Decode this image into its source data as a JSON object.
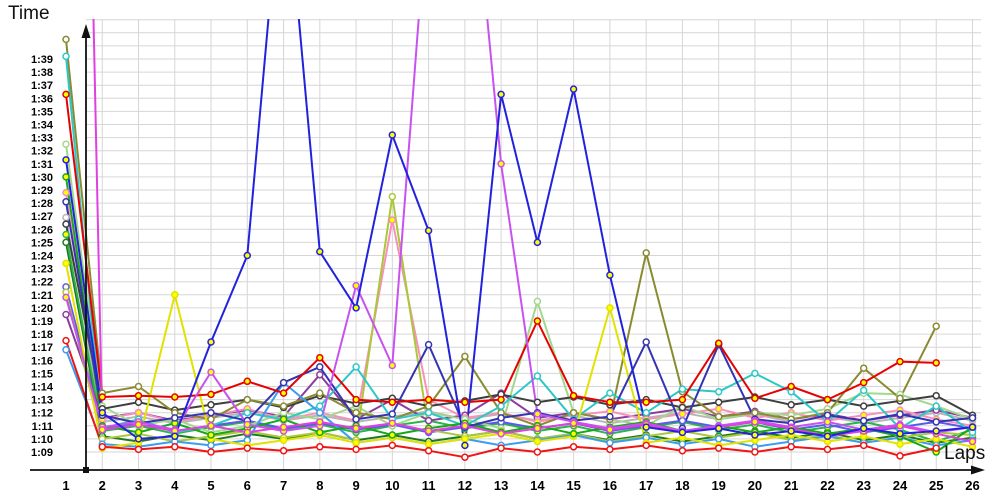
{
  "chart_data": {
    "type": "line",
    "title": "",
    "xlabel": "Laps",
    "ylabel": "Time",
    "grid": true,
    "legend_position": "none",
    "x_ticks": [
      1,
      2,
      3,
      4,
      5,
      6,
      7,
      8,
      9,
      10,
      11,
      12,
      13,
      14,
      15,
      16,
      17,
      18,
      19,
      20,
      21,
      22,
      23,
      24,
      25,
      26
    ],
    "y_tick_labels": [
      "1:09",
      "1:10",
      "1:11",
      "1:12",
      "1:13",
      "1:14",
      "1:15",
      "1:16",
      "1:17",
      "1:18",
      "1:19",
      "1:20",
      "1:21",
      "1:22",
      "1:23",
      "1:24",
      "1:25",
      "1:26",
      "1:27",
      "1:28",
      "1:29",
      "1:30",
      "1:31",
      "1:32",
      "1:33",
      "1:34",
      "1:35",
      "1:36",
      "1:37",
      "1:38",
      "1:39"
    ],
    "y_tick_seconds_start": 69,
    "ylim_seconds": [
      68,
      103
    ],
    "x_range": [
      1,
      26
    ],
    "note": "values are lap times in seconds; values above 102s run off the top of the plot (clipped)",
    "colors": {
      "grid": "#d6d6d6",
      "axis": "#111111",
      "marker_yellow": "#ffff00",
      "marker_white": "#ffffff"
    },
    "series": [
      {
        "name": "silver",
        "color": "#b6b6b6",
        "marker_fill": "white",
        "values": [
          86.9,
          71.3,
          71.7,
          71.2,
          71.6,
          72.0,
          71.4,
          71.8,
          71.3,
          71.7,
          72.1,
          71.5,
          71.9,
          71.4,
          71.8,
          71.2,
          71.6,
          72.0,
          71.5,
          71.9,
          71.3,
          71.7,
          71.2,
          71.6,
          72.0,
          71.4
        ]
      },
      {
        "name": "darkgreen",
        "color": "#1e7a1e",
        "marker_fill": "white",
        "values": [
          85.0,
          70.2,
          69.8,
          70.3,
          69.9,
          70.4,
          70.0,
          70.5,
          69.9,
          70.3,
          69.8,
          70.2,
          70.6,
          70.0,
          70.4,
          69.9,
          70.3,
          69.8,
          70.2,
          70.6,
          70.1,
          70.5,
          69.9,
          70.3,
          69.7,
          70.1
        ]
      },
      {
        "name": "green2",
        "color": "#2cb44c",
        "marker_fill": "yellow",
        "values": [
          85.6,
          70.6,
          71.0,
          70.4,
          70.9,
          71.3,
          70.7,
          71.1,
          70.5,
          71.0,
          71.4,
          70.8,
          71.2,
          70.6,
          71.0,
          70.4,
          70.9,
          71.3,
          70.7,
          71.1,
          70.5,
          70.9,
          71.3,
          70.7,
          69.8,
          70.7
        ]
      },
      {
        "name": "blue2",
        "color": "#5a5aec",
        "marker_fill": "white",
        "values": [
          81.6,
          70.8,
          71.2,
          70.6,
          71.0,
          71.4,
          70.8,
          71.2,
          70.7,
          71.1,
          70.5,
          70.9,
          71.3,
          70.8,
          71.2,
          70.6,
          71.0,
          71.4,
          70.9,
          71.3,
          70.7,
          71.1,
          70.5,
          70.9,
          71.3,
          70.8
        ]
      },
      {
        "name": "purple",
        "color": "#8c3c9c",
        "marker_fill": "white",
        "values": [
          79.5,
          71.6,
          72.0,
          71.4,
          71.8,
          72.2,
          71.7,
          74.9,
          71.5,
          73.0,
          71.4,
          71.8,
          73.5,
          71.6,
          72.0,
          71.5,
          71.9,
          72.3,
          71.7,
          72.1,
          71.5,
          71.9,
          71.4,
          71.8,
          72.2,
          71.6
        ]
      },
      {
        "name": "pink",
        "color": "#f890bc",
        "marker_fill": "yellow",
        "values": [
          88.8,
          71.5,
          72.0,
          71.3,
          71.8,
          72.3,
          71.5,
          72.0,
          71.4,
          86.7,
          73.0,
          71.6,
          72.0,
          71.3,
          71.8,
          72.1,
          71.5,
          71.9,
          72.3,
          71.6,
          72.0,
          71.4,
          71.8,
          72.2,
          71.5,
          71.0
        ]
      },
      {
        "name": "palegreen",
        "color": "#a2d88e",
        "marker_fill": "white",
        "values": [
          92.5,
          72.5,
          71.0,
          71.5,
          70.5,
          71.0,
          72.0,
          71.5,
          72.5,
          71.0,
          72.0,
          71.5,
          70.8,
          80.5,
          72.0,
          71.5,
          71.0,
          72.5,
          71.5,
          72.0,
          71.8,
          72.3,
          73.5,
          73.4,
          72.5,
          71.5
        ]
      },
      {
        "name": "yellowgreen",
        "color": "#aac838",
        "marker_fill": "white",
        "values": [
          81.2,
          70.0,
          70.4,
          69.8,
          70.2,
          70.6,
          70.1,
          70.5,
          69.9,
          88.5,
          70.7,
          70.2,
          70.6,
          70.0,
          70.4,
          69.8,
          70.2,
          70.6,
          70.1,
          70.5,
          69.9,
          70.3,
          69.7,
          70.1,
          70.5,
          70.3
        ]
      },
      {
        "name": "darkgray",
        "color": "#3e3e3e",
        "marker_fill": "white",
        "values": [
          86.4,
          72.3,
          72.8,
          72.2,
          72.6,
          73.0,
          72.4,
          73.3,
          72.7,
          73.1,
          72.5,
          72.9,
          73.4,
          72.8,
          73.2,
          72.6,
          73.0,
          72.4,
          72.8,
          73.2,
          72.6,
          73.0,
          72.5,
          72.9,
          73.3,
          71.8
        ]
      },
      {
        "name": "olive",
        "color": "#8a8a30",
        "marker_fill": "white",
        "values": [
          100.5,
          73.5,
          74.0,
          72.0,
          71.5,
          73.0,
          72.5,
          73.5,
          72.0,
          71.5,
          72.5,
          76.3,
          72.0,
          71.0,
          72.0,
          71.5,
          84.2,
          73.6,
          71.7,
          72.0,
          71.5,
          72.0,
          75.4,
          73.1,
          78.6
        ]
      },
      {
        "name": "cyan",
        "color": "#2cc8c8",
        "marker_fill": "white",
        "values": [
          99.2,
          70.8,
          71.5,
          70.5,
          71.0,
          72.0,
          71.5,
          72.5,
          75.5,
          71.5,
          72.0,
          71.0,
          72.5,
          74.8,
          71.5,
          73.5,
          72.0,
          73.8,
          73.6,
          75.0,
          73.6,
          71.3,
          73.7,
          70.8,
          72.5,
          70.5
        ]
      },
      {
        "name": "skyblue",
        "color": "#3c9cf0",
        "marker_fill": "white",
        "values": [
          76.8,
          69.6,
          69.4,
          69.8,
          69.5,
          69.9,
          74.3,
          72.0,
          69.7,
          70.1,
          69.6,
          70.0,
          69.5,
          69.9,
          70.3,
          69.7,
          70.1,
          69.6,
          70.0,
          69.4,
          69.8,
          70.2,
          69.7,
          70.1,
          69.5,
          69.9
        ]
      },
      {
        "name": "yellow",
        "color": "#e2e200",
        "marker_fill": "yellow",
        "values": [
          83.4,
          69.3,
          69.7,
          81.0,
          70.0,
          69.5,
          69.9,
          70.3,
          69.7,
          70.1,
          69.6,
          70.0,
          70.4,
          69.8,
          70.2,
          80.0,
          69.7,
          70.1,
          69.5,
          69.9,
          70.3,
          69.8,
          70.2,
          69.6,
          70.0,
          69.4
        ]
      },
      {
        "name": "green",
        "color": "#16a816",
        "marker_fill": "yellow",
        "values": [
          90.0,
          71.0,
          70.5,
          71.2,
          70.3,
          70.8,
          71.5,
          70.5,
          71.0,
          70.3,
          70.8,
          71.2,
          70.5,
          71.0,
          70.4,
          70.9,
          71.3,
          70.6,
          71.0,
          70.5,
          70.9,
          70.4,
          70.8,
          70.2,
          69.0,
          70.9
        ]
      },
      {
        "name": "navy",
        "color": "#3434b0",
        "marker_fill": "white",
        "values": [
          88.1,
          71.8,
          71.2,
          71.6,
          72.0,
          71.4,
          74.3,
          75.5,
          71.5,
          71.9,
          77.2,
          70.9,
          71.6,
          72.0,
          71.4,
          71.7,
          77.4,
          70.8,
          77.2,
          71.5,
          71.2,
          71.8,
          71.4,
          71.9,
          71.3,
          71.6
        ]
      },
      {
        "name": "red2",
        "color": "#f01414",
        "marker_fill": "white",
        "values": [
          77.5,
          69.4,
          69.2,
          69.4,
          69.0,
          69.3,
          69.1,
          69.4,
          69.2,
          69.5,
          69.1,
          68.6,
          69.3,
          69.0,
          69.4,
          69.2,
          69.5,
          69.1,
          69.3,
          69.0,
          69.4,
          69.2,
          69.5,
          68.7,
          69.3
        ]
      },
      {
        "name": "red",
        "color": "#e80000",
        "marker_fill": "yellow",
        "values": [
          96.3,
          73.2,
          73.3,
          73.2,
          73.4,
          74.4,
          73.5,
          76.2,
          73.0,
          72.8,
          73.0,
          72.8,
          73.0,
          79.0,
          73.3,
          72.8,
          72.8,
          73.0,
          77.3,
          73.1,
          74.0,
          73.0,
          74.3,
          75.9,
          75.8
        ]
      },
      {
        "name": "violet",
        "color": "#c852f0",
        "marker_fill": "yellow",
        "values": [
          80.8,
          70.9,
          71.3,
          70.7,
          75.1,
          71.1,
          70.6,
          71.0,
          81.7,
          75.6,
          112.0,
          120.0,
          91.0,
          71.9,
          71.3,
          70.8,
          71.2,
          70.6,
          71.0,
          71.4,
          70.9,
          71.3,
          70.7,
          71.1,
          70.5,
          70.9
        ]
      },
      {
        "name": "magenta",
        "color": "#e040e0",
        "marker_fill": "yellow",
        "values": [
          200.0,
          70.7,
          71.1,
          70.6,
          71.0,
          70.5,
          70.9,
          71.3,
          70.8,
          71.2,
          70.6,
          71.0,
          70.4,
          70.8,
          71.2,
          70.7,
          71.1,
          70.5,
          70.9,
          71.3,
          70.8,
          70.2,
          70.6,
          71.0,
          70.4,
          69.8
        ]
      },
      {
        "name": "blue",
        "color": "#2222dd",
        "marker_fill": "yellow",
        "values": [
          91.3,
          72.0,
          70.0,
          70.2,
          77.4,
          84.0,
          115.0,
          84.3,
          80.0,
          93.2,
          85.9,
          69.5,
          96.3,
          85.0,
          96.7,
          82.5,
          70.9,
          70.5,
          70.8,
          70.3,
          70.6,
          70.2,
          70.8,
          70.4,
          70.6,
          70.9
        ]
      }
    ]
  }
}
